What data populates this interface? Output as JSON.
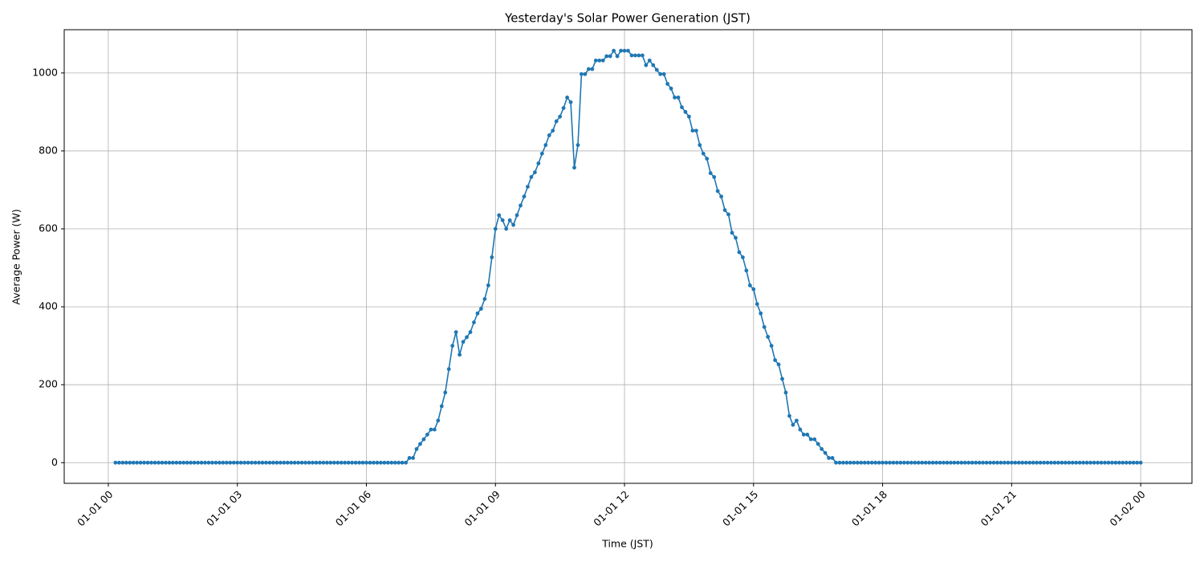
{
  "chart_data": {
    "type": "line",
    "title": "Yesterday's Solar Power Generation (JST)",
    "xlabel": "Time (JST)",
    "ylabel": "Average Power (W)",
    "color": "#1f77b4",
    "grid": true,
    "xlim": [
      -61.5,
      1511.5
    ],
    "ylim": [
      -53,
      1111
    ],
    "xticks": [
      {
        "value": 0,
        "label": "01-01 00"
      },
      {
        "value": 180,
        "label": "01-01 03"
      },
      {
        "value": 360,
        "label": "01-01 06"
      },
      {
        "value": 540,
        "label": "01-01 09"
      },
      {
        "value": 720,
        "label": "01-01 12"
      },
      {
        "value": 900,
        "label": "01-01 15"
      },
      {
        "value": 1080,
        "label": "01-01 18"
      },
      {
        "value": 1260,
        "label": "01-01 21"
      },
      {
        "value": 1440,
        "label": "01-02 00"
      }
    ],
    "yticks": [
      0,
      200,
      400,
      600,
      800,
      1000
    ],
    "x": [
      10,
      15,
      20,
      25,
      30,
      35,
      40,
      45,
      50,
      55,
      60,
      65,
      70,
      75,
      80,
      85,
      90,
      95,
      100,
      105,
      110,
      115,
      120,
      125,
      130,
      135,
      140,
      145,
      150,
      155,
      160,
      165,
      170,
      175,
      180,
      185,
      190,
      195,
      200,
      205,
      210,
      215,
      220,
      225,
      230,
      235,
      240,
      245,
      250,
      255,
      260,
      265,
      270,
      275,
      280,
      285,
      290,
      295,
      300,
      305,
      310,
      315,
      320,
      325,
      330,
      335,
      340,
      345,
      350,
      355,
      360,
      365,
      370,
      375,
      380,
      385,
      390,
      395,
      400,
      405,
      410,
      415,
      420,
      425,
      430,
      435,
      440,
      445,
      450,
      455,
      460,
      465,
      470,
      475,
      480,
      485,
      490,
      495,
      500,
      505,
      510,
      515,
      520,
      525,
      530,
      535,
      540,
      545,
      550,
      555,
      560,
      565,
      570,
      575,
      580,
      585,
      590,
      595,
      600,
      605,
      610,
      615,
      620,
      625,
      630,
      635,
      640,
      645,
      650,
      655,
      660,
      665,
      670,
      675,
      680,
      685,
      690,
      695,
      700,
      705,
      710,
      715,
      720,
      725,
      730,
      735,
      740,
      745,
      750,
      755,
      760,
      765,
      770,
      775,
      780,
      785,
      790,
      795,
      800,
      805,
      810,
      815,
      820,
      825,
      830,
      835,
      840,
      845,
      850,
      855,
      860,
      865,
      870,
      875,
      880,
      885,
      890,
      895,
      900,
      905,
      910,
      915,
      920,
      925,
      930,
      935,
      940,
      945,
      950,
      955,
      960,
      965,
      970,
      975,
      980,
      985,
      990,
      995,
      1000,
      1005,
      1010,
      1015,
      1020,
      1025,
      1030,
      1035,
      1040,
      1045,
      1050,
      1055,
      1060,
      1065,
      1070,
      1075,
      1080,
      1085,
      1090,
      1095,
      1100,
      1105,
      1110,
      1115,
      1120,
      1125,
      1130,
      1135,
      1140,
      1145,
      1150,
      1155,
      1160,
      1165,
      1170,
      1175,
      1180,
      1185,
      1190,
      1195,
      1200,
      1205,
      1210,
      1215,
      1220,
      1225,
      1230,
      1235,
      1240,
      1245,
      1250,
      1255,
      1260,
      1265,
      1270,
      1275,
      1280,
      1285,
      1290,
      1295,
      1300,
      1305,
      1310,
      1315,
      1320,
      1325,
      1330,
      1335,
      1340,
      1345,
      1350,
      1355,
      1360,
      1365,
      1370,
      1375,
      1380,
      1385,
      1390,
      1395,
      1400,
      1405,
      1410,
      1415,
      1420,
      1425,
      1430,
      1435,
      1440
    ],
    "values": [
      0,
      0,
      0,
      0,
      0,
      0,
      0,
      0,
      0,
      0,
      0,
      0,
      0,
      0,
      0,
      0,
      0,
      0,
      0,
      0,
      0,
      0,
      0,
      0,
      0,
      0,
      0,
      0,
      0,
      0,
      0,
      0,
      0,
      0,
      0,
      0,
      0,
      0,
      0,
      0,
      0,
      0,
      0,
      0,
      0,
      0,
      0,
      0,
      0,
      0,
      0,
      0,
      0,
      0,
      0,
      0,
      0,
      0,
      0,
      0,
      0,
      0,
      0,
      0,
      0,
      0,
      0,
      0,
      0,
      0,
      0,
      0,
      0,
      0,
      0,
      0,
      0,
      0,
      0,
      0,
      0,
      0,
      12,
      12,
      35,
      48,
      60,
      72,
      85,
      85,
      108,
      145,
      180,
      240,
      300,
      335,
      277,
      310,
      322,
      335,
      360,
      383,
      395,
      420,
      455,
      527,
      600,
      635,
      622,
      600,
      622,
      610,
      635,
      660,
      683,
      708,
      733,
      745,
      768,
      793,
      815,
      840,
      852,
      876,
      888,
      910,
      937,
      925,
      757,
      815,
      997,
      997,
      1010,
      1010,
      1032,
      1032,
      1032,
      1043,
      1043,
      1057,
      1043,
      1057,
      1057,
      1057,
      1045,
      1045,
      1045,
      1045,
      1020,
      1032,
      1020,
      1008,
      997,
      997,
      972,
      960,
      937,
      937,
      912,
      900,
      888,
      852,
      852,
      815,
      793,
      780,
      743,
      733,
      697,
      683,
      648,
      637,
      590,
      577,
      540,
      527,
      493,
      455,
      445,
      407,
      383,
      348,
      323,
      300,
      263,
      252,
      215,
      180,
      120,
      97,
      108,
      85,
      72,
      72,
      60,
      60,
      48,
      35,
      25,
      12,
      12,
      0,
      0,
      0,
      0,
      0,
      0,
      0,
      0,
      0,
      0,
      0,
      0,
      0,
      0,
      0,
      0,
      0,
      0,
      0,
      0,
      0,
      0,
      0,
      0,
      0,
      0,
      0,
      0,
      0,
      0,
      0,
      0,
      0,
      0,
      0,
      0,
      0,
      0,
      0,
      0,
      0,
      0,
      0,
      0,
      0,
      0,
      0,
      0,
      0,
      0,
      0,
      0,
      0,
      0,
      0,
      0,
      0,
      0,
      0,
      0,
      0,
      0,
      0,
      0,
      0,
      0,
      0,
      0,
      0,
      0,
      0,
      0,
      0,
      0,
      0,
      0,
      0,
      0,
      0,
      0,
      0,
      0,
      0,
      0,
      0,
      0
    ]
  }
}
